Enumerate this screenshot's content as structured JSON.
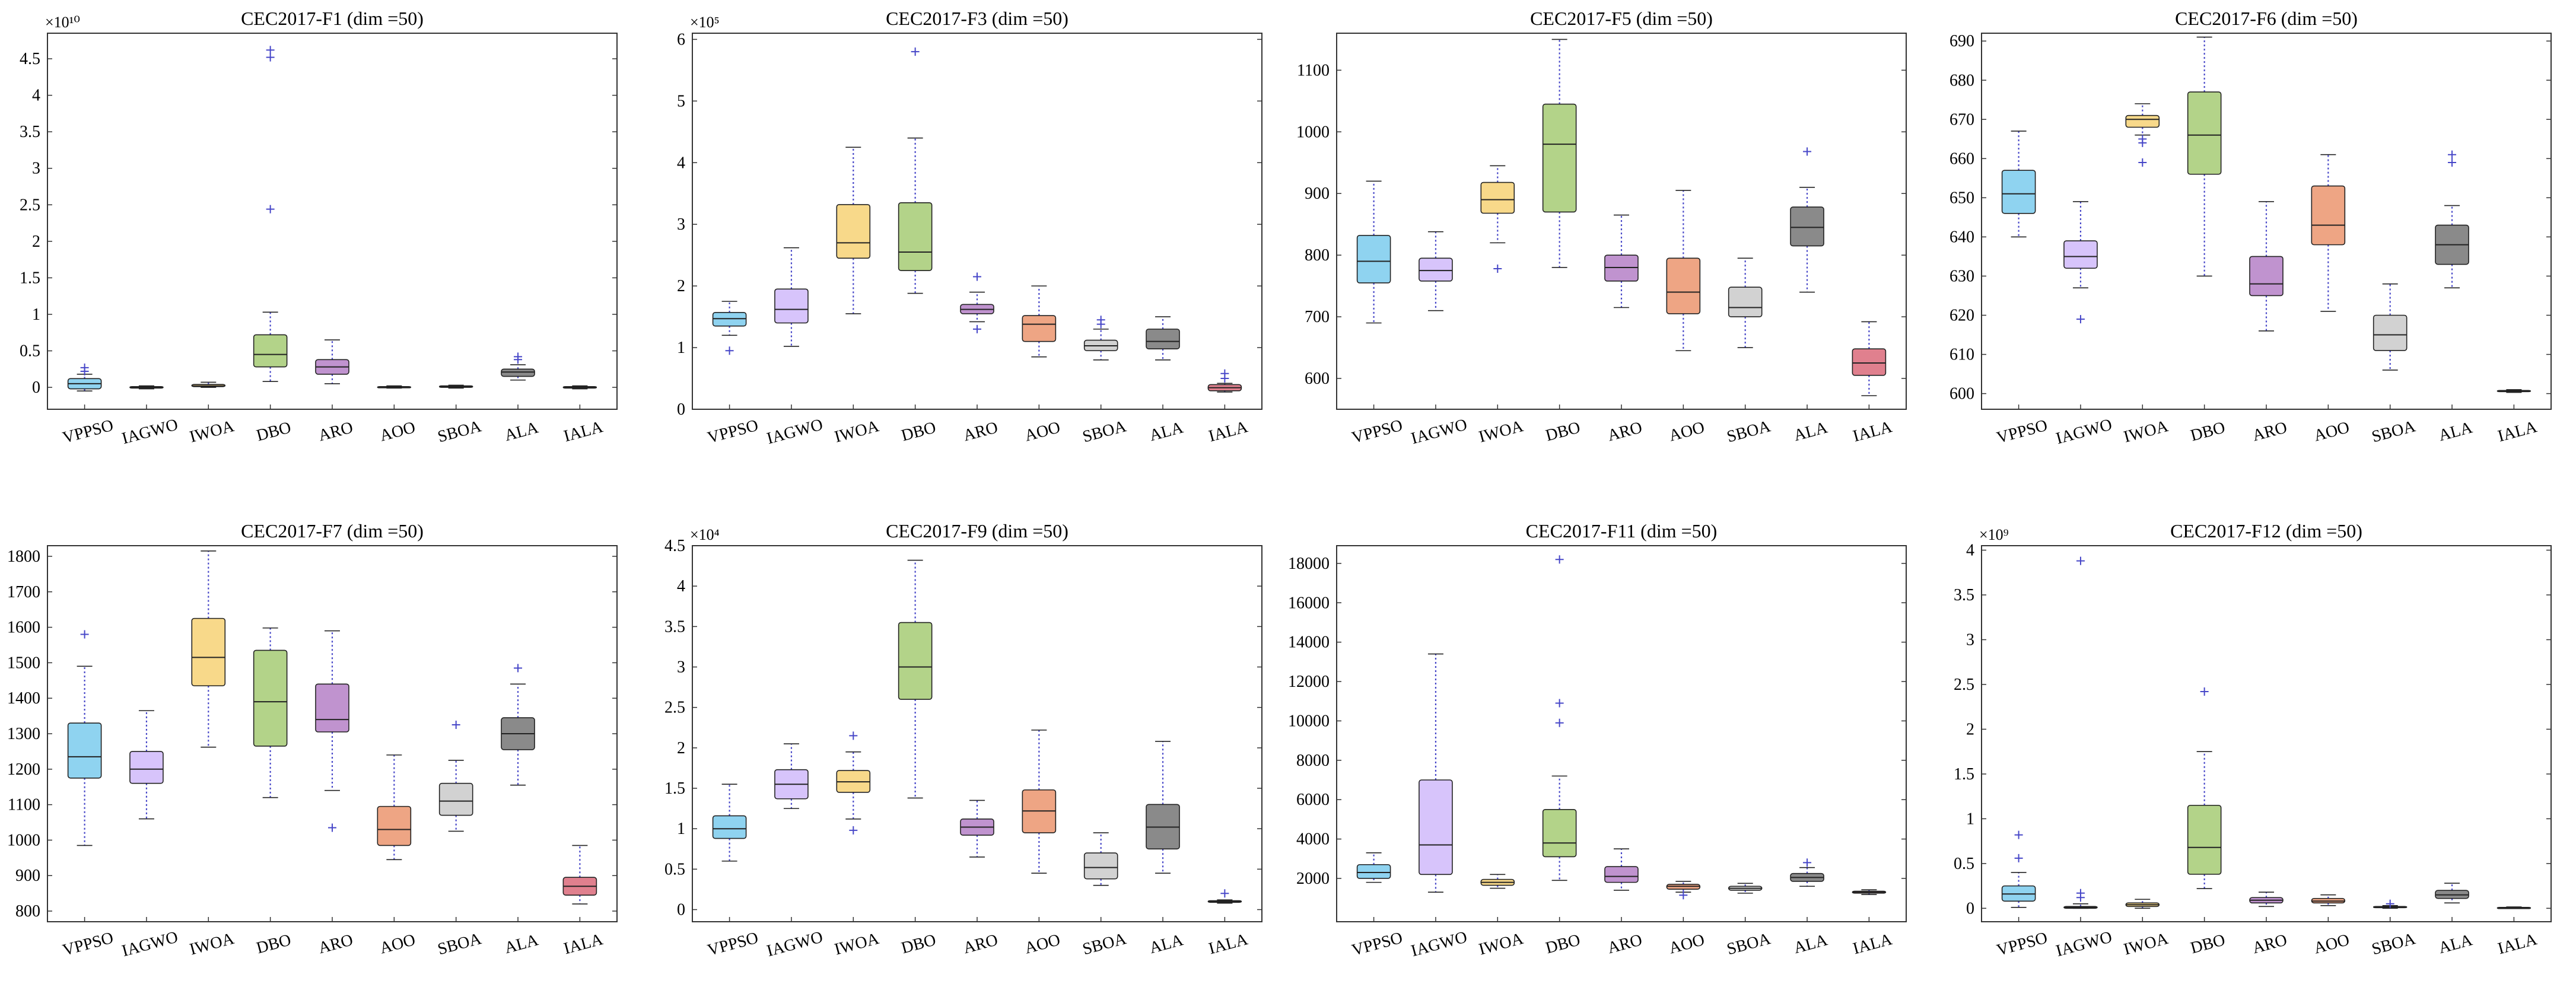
{
  "chart_data": [
    {
      "type": "box",
      "title": "CEC2017-F1 (dim =50)",
      "exponent_label": "×10¹⁰",
      "yticks": [
        0,
        0.5,
        1,
        1.5,
        2,
        2.5,
        3,
        3.5,
        4,
        4.5
      ],
      "yticklabels": [
        "0",
        "0.5",
        "1",
        "1.5",
        "2",
        "2.5",
        "3",
        "3.5",
        "4",
        "4.5"
      ],
      "ylim": [
        -0.3,
        4.85
      ],
      "categories": [
        "VPPSO",
        "IAGWO",
        "IWOA",
        "DBO",
        "ARO",
        "AOO",
        "SBOA",
        "ALA",
        "IALA"
      ],
      "boxes": [
        {
          "min": -0.05,
          "q1": -0.02,
          "median": 0.05,
          "q3": 0.12,
          "max": 0.18,
          "outliers": [
            0.22,
            0.27
          ]
        },
        {
          "min": -0.02,
          "q1": -0.01,
          "median": 0.0,
          "q3": 0.01,
          "max": 0.02,
          "outliers": []
        },
        {
          "min": 0.0,
          "q1": 0.01,
          "median": 0.02,
          "q3": 0.04,
          "max": 0.07,
          "outliers": []
        },
        {
          "min": 0.08,
          "q1": 0.28,
          "median": 0.45,
          "q3": 0.72,
          "max": 1.03,
          "outliers": [
            2.44,
            4.52,
            4.62
          ]
        },
        {
          "min": 0.05,
          "q1": 0.18,
          "median": 0.28,
          "q3": 0.38,
          "max": 0.65,
          "outliers": []
        },
        {
          "min": -0.01,
          "q1": 0.0,
          "median": 0.0,
          "q3": 0.01,
          "max": 0.02,
          "outliers": []
        },
        {
          "min": -0.01,
          "q1": 0.0,
          "median": 0.01,
          "q3": 0.02,
          "max": 0.03,
          "outliers": []
        },
        {
          "min": 0.1,
          "q1": 0.15,
          "median": 0.21,
          "q3": 0.25,
          "max": 0.31,
          "outliers": [
            0.38,
            0.42
          ]
        },
        {
          "min": -0.02,
          "q1": -0.01,
          "median": 0.0,
          "q3": 0.01,
          "max": 0.02,
          "outliers": []
        }
      ]
    },
    {
      "type": "box",
      "title": "CEC2017-F3 (dim =50)",
      "exponent_label": "×10⁵",
      "yticks": [
        0,
        1,
        2,
        3,
        4,
        5,
        6
      ],
      "yticklabels": [
        "0",
        "1",
        "2",
        "3",
        "4",
        "5",
        "6"
      ],
      "ylim": [
        0,
        6.1
      ],
      "categories": [
        "VPPSO",
        "IAGWO",
        "IWOA",
        "DBO",
        "ARO",
        "AOO",
        "SBOA",
        "ALA",
        "IALA"
      ],
      "boxes": [
        {
          "min": 1.2,
          "q1": 1.35,
          "median": 1.47,
          "q3": 1.57,
          "max": 1.75,
          "outliers": [
            0.95
          ]
        },
        {
          "min": 1.02,
          "q1": 1.4,
          "median": 1.62,
          "q3": 1.95,
          "max": 2.62,
          "outliers": []
        },
        {
          "min": 1.55,
          "q1": 2.45,
          "median": 2.7,
          "q3": 3.32,
          "max": 4.25,
          "outliers": []
        },
        {
          "min": 1.88,
          "q1": 2.25,
          "median": 2.55,
          "q3": 3.35,
          "max": 4.4,
          "outliers": [
            5.8
          ]
        },
        {
          "min": 1.42,
          "q1": 1.55,
          "median": 1.62,
          "q3": 1.7,
          "max": 1.9,
          "outliers": [
            2.15,
            1.3
          ]
        },
        {
          "min": 0.85,
          "q1": 1.1,
          "median": 1.38,
          "q3": 1.52,
          "max": 2.0,
          "outliers": []
        },
        {
          "min": 0.8,
          "q1": 0.95,
          "median": 1.03,
          "q3": 1.12,
          "max": 1.3,
          "outliers": [
            1.38,
            1.45
          ]
        },
        {
          "min": 0.8,
          "q1": 0.98,
          "median": 1.1,
          "q3": 1.3,
          "max": 1.5,
          "outliers": []
        },
        {
          "min": 0.28,
          "q1": 0.3,
          "median": 0.35,
          "q3": 0.4,
          "max": 0.42,
          "outliers": [
            0.5,
            0.58
          ]
        }
      ]
    },
    {
      "type": "box",
      "title": "CEC2017-F5 (dim =50)",
      "exponent_label": "",
      "yticks": [
        600,
        700,
        800,
        900,
        1000,
        1100
      ],
      "yticklabels": [
        "600",
        "700",
        "800",
        "900",
        "1000",
        "1100"
      ],
      "ylim": [
        550,
        1160
      ],
      "categories": [
        "VPPSO",
        "IAGWO",
        "IWOA",
        "DBO",
        "ARO",
        "AOO",
        "SBOA",
        "ALA",
        "IALA"
      ],
      "boxes": [
        {
          "min": 690,
          "q1": 755,
          "median": 790,
          "q3": 832,
          "max": 920,
          "outliers": []
        },
        {
          "min": 710,
          "q1": 758,
          "median": 775,
          "q3": 795,
          "max": 838,
          "outliers": []
        },
        {
          "min": 820,
          "q1": 868,
          "median": 890,
          "q3": 918,
          "max": 945,
          "outliers": [
            778
          ]
        },
        {
          "min": 780,
          "q1": 870,
          "median": 980,
          "q3": 1045,
          "max": 1150,
          "outliers": []
        },
        {
          "min": 715,
          "q1": 758,
          "median": 780,
          "q3": 800,
          "max": 865,
          "outliers": []
        },
        {
          "min": 645,
          "q1": 705,
          "median": 740,
          "q3": 795,
          "max": 905,
          "outliers": []
        },
        {
          "min": 650,
          "q1": 700,
          "median": 715,
          "q3": 748,
          "max": 795,
          "outliers": []
        },
        {
          "min": 740,
          "q1": 815,
          "median": 845,
          "q3": 878,
          "max": 910,
          "outliers": [
            968
          ]
        },
        {
          "min": 572,
          "q1": 605,
          "median": 625,
          "q3": 648,
          "max": 692,
          "outliers": []
        }
      ]
    },
    {
      "type": "box",
      "title": "CEC2017-F6 (dim =50)",
      "exponent_label": "",
      "yticks": [
        600,
        610,
        620,
        630,
        640,
        650,
        660,
        670,
        680,
        690
      ],
      "yticklabels": [
        "600",
        "610",
        "620",
        "630",
        "640",
        "650",
        "660",
        "670",
        "680",
        "690"
      ],
      "ylim": [
        596,
        692
      ],
      "categories": [
        "VPPSO",
        "IAGWO",
        "IWOA",
        "DBO",
        "ARO",
        "AOO",
        "SBOA",
        "ALA",
        "IALA"
      ],
      "boxes": [
        {
          "min": 640,
          "q1": 646,
          "median": 651,
          "q3": 657,
          "max": 667,
          "outliers": []
        },
        {
          "min": 627,
          "q1": 632,
          "median": 635,
          "q3": 639,
          "max": 649,
          "outliers": [
            619
          ]
        },
        {
          "min": 666,
          "q1": 668,
          "median": 670,
          "q3": 671,
          "max": 674,
          "outliers": [
            659,
            664,
            665
          ]
        },
        {
          "min": 630,
          "q1": 656,
          "median": 666,
          "q3": 677,
          "max": 691,
          "outliers": []
        },
        {
          "min": 616,
          "q1": 625,
          "median": 628,
          "q3": 635,
          "max": 649,
          "outliers": []
        },
        {
          "min": 621,
          "q1": 638,
          "median": 643,
          "q3": 653,
          "max": 661,
          "outliers": []
        },
        {
          "min": 606,
          "q1": 611,
          "median": 615,
          "q3": 620,
          "max": 628,
          "outliers": []
        },
        {
          "min": 627,
          "q1": 633,
          "median": 638,
          "q3": 643,
          "max": 648,
          "outliers": [
            659,
            661
          ]
        },
        {
          "min": 600.3,
          "q1": 600.5,
          "median": 600.6,
          "q3": 600.8,
          "max": 601,
          "outliers": []
        }
      ]
    },
    {
      "type": "box",
      "title": "CEC2017-F7 (dim =50)",
      "exponent_label": "",
      "yticks": [
        800,
        900,
        1000,
        1100,
        1200,
        1300,
        1400,
        1500,
        1600,
        1700,
        1800
      ],
      "yticklabels": [
        "800",
        "900",
        "1000",
        "1100",
        "1200",
        "1300",
        "1400",
        "1500",
        "1600",
        "1700",
        "1800"
      ],
      "ylim": [
        770,
        1830
      ],
      "categories": [
        "VPPSO",
        "IAGWO",
        "IWOA",
        "DBO",
        "ARO",
        "AOO",
        "SBOA",
        "ALA",
        "IALA"
      ],
      "boxes": [
        {
          "min": 985,
          "q1": 1175,
          "median": 1235,
          "q3": 1330,
          "max": 1490,
          "outliers": [
            1580
          ]
        },
        {
          "min": 1060,
          "q1": 1160,
          "median": 1200,
          "q3": 1250,
          "max": 1365,
          "outliers": []
        },
        {
          "min": 1262,
          "q1": 1435,
          "median": 1515,
          "q3": 1625,
          "max": 1815,
          "outliers": []
        },
        {
          "min": 1120,
          "q1": 1265,
          "median": 1390,
          "q3": 1535,
          "max": 1598,
          "outliers": []
        },
        {
          "min": 1140,
          "q1": 1305,
          "median": 1340,
          "q3": 1440,
          "max": 1590,
          "outliers": [
            1035
          ]
        },
        {
          "min": 945,
          "q1": 985,
          "median": 1030,
          "q3": 1095,
          "max": 1240,
          "outliers": []
        },
        {
          "min": 1025,
          "q1": 1070,
          "median": 1110,
          "q3": 1160,
          "max": 1225,
          "outliers": [
            1325
          ]
        },
        {
          "min": 1155,
          "q1": 1255,
          "median": 1300,
          "q3": 1345,
          "max": 1440,
          "outliers": [
            1485
          ]
        },
        {
          "min": 820,
          "q1": 845,
          "median": 870,
          "q3": 895,
          "max": 985,
          "outliers": []
        }
      ]
    },
    {
      "type": "box",
      "title": "CEC2017-F9 (dim =50)",
      "exponent_label": "×10⁴",
      "yticks": [
        0,
        0.5,
        1,
        1.5,
        2,
        2.5,
        3,
        3.5,
        4,
        4.5
      ],
      "yticklabels": [
        "0",
        "0.5",
        "1",
        "1.5",
        "2",
        "2.5",
        "3",
        "3.5",
        "4",
        "4.5"
      ],
      "ylim": [
        -0.15,
        4.5
      ],
      "categories": [
        "VPPSO",
        "IAGWO",
        "IWOA",
        "DBO",
        "ARO",
        "AOO",
        "SBOA",
        "ALA",
        "IALA"
      ],
      "boxes": [
        {
          "min": 0.6,
          "q1": 0.88,
          "median": 1.0,
          "q3": 1.16,
          "max": 1.55,
          "outliers": []
        },
        {
          "min": 1.25,
          "q1": 1.37,
          "median": 1.55,
          "q3": 1.73,
          "max": 2.05,
          "outliers": []
        },
        {
          "min": 1.12,
          "q1": 1.45,
          "median": 1.58,
          "q3": 1.72,
          "max": 1.95,
          "outliers": [
            0.98,
            2.15
          ]
        },
        {
          "min": 1.38,
          "q1": 2.6,
          "median": 3.0,
          "q3": 3.55,
          "max": 4.32,
          "outliers": []
        },
        {
          "min": 0.65,
          "q1": 0.92,
          "median": 1.02,
          "q3": 1.12,
          "max": 1.35,
          "outliers": []
        },
        {
          "min": 0.45,
          "q1": 0.95,
          "median": 1.22,
          "q3": 1.48,
          "max": 2.22,
          "outliers": []
        },
        {
          "min": 0.3,
          "q1": 0.38,
          "median": 0.52,
          "q3": 0.7,
          "max": 0.95,
          "outliers": []
        },
        {
          "min": 0.45,
          "q1": 0.75,
          "median": 1.02,
          "q3": 1.3,
          "max": 2.08,
          "outliers": []
        },
        {
          "min": 0.08,
          "q1": 0.09,
          "median": 0.1,
          "q3": 0.11,
          "max": 0.12,
          "outliers": [
            0.2
          ]
        }
      ]
    },
    {
      "type": "box",
      "title": "CEC2017-F11 (dim =50)",
      "exponent_label": "",
      "yticks": [
        2000,
        4000,
        6000,
        8000,
        10000,
        12000,
        14000,
        16000,
        18000
      ],
      "yticklabels": [
        "2000",
        "4000",
        "6000",
        "8000",
        "10000",
        "12000",
        "14000",
        "16000",
        "18000"
      ],
      "ylim": [
        -200,
        18900
      ],
      "categories": [
        "VPPSO",
        "IAGWO",
        "IWOA",
        "DBO",
        "ARO",
        "AOO",
        "SBOA",
        "ALA",
        "IALA"
      ],
      "boxes": [
        {
          "min": 1800,
          "q1": 2000,
          "median": 2300,
          "q3": 2700,
          "max": 3300,
          "outliers": []
        },
        {
          "min": 1300,
          "q1": 2200,
          "median": 3700,
          "q3": 7000,
          "max": 13400,
          "outliers": []
        },
        {
          "min": 1500,
          "q1": 1650,
          "median": 1800,
          "q3": 1950,
          "max": 2200,
          "outliers": []
        },
        {
          "min": 1900,
          "q1": 3100,
          "median": 3800,
          "q3": 5500,
          "max": 7200,
          "outliers": [
            9900,
            10900,
            18200
          ]
        },
        {
          "min": 1400,
          "q1": 1800,
          "median": 2100,
          "q3": 2600,
          "max": 3500,
          "outliers": []
        },
        {
          "min": 1300,
          "q1": 1450,
          "median": 1600,
          "q3": 1700,
          "max": 1850,
          "outliers": [
            1150
          ]
        },
        {
          "min": 1250,
          "q1": 1400,
          "median": 1500,
          "q3": 1600,
          "max": 1750,
          "outliers": []
        },
        {
          "min": 1600,
          "q1": 1850,
          "median": 2050,
          "q3": 2250,
          "max": 2550,
          "outliers": [
            2800
          ]
        },
        {
          "min": 1180,
          "q1": 1250,
          "median": 1300,
          "q3": 1350,
          "max": 1420,
          "outliers": []
        }
      ]
    },
    {
      "type": "box",
      "title": "CEC2017-F12 (dim =50)",
      "exponent_label": "×10⁹",
      "yticks": [
        0,
        0.5,
        1,
        1.5,
        2,
        2.5,
        3,
        3.5,
        4
      ],
      "yticklabels": [
        "0",
        "0.5",
        "1",
        "1.5",
        "2",
        "2.5",
        "3",
        "3.5",
        "4"
      ],
      "ylim": [
        -0.15,
        4.05
      ],
      "categories": [
        "VPPSO",
        "IAGWO",
        "IWOA",
        "DBO",
        "ARO",
        "AOO",
        "SBOA",
        "ALA",
        "IALA"
      ],
      "boxes": [
        {
          "min": 0.01,
          "q1": 0.08,
          "median": 0.16,
          "q3": 0.25,
          "max": 0.4,
          "outliers": [
            0.56,
            0.82
          ]
        },
        {
          "min": 0.0,
          "q1": 0.0,
          "median": 0.01,
          "q3": 0.02,
          "max": 0.05,
          "outliers": [
            0.12,
            0.17,
            3.88
          ]
        },
        {
          "min": 0.0,
          "q1": 0.02,
          "median": 0.04,
          "q3": 0.06,
          "max": 0.1,
          "outliers": []
        },
        {
          "min": 0.22,
          "q1": 0.38,
          "median": 0.68,
          "q3": 1.15,
          "max": 1.75,
          "outliers": [
            2.42
          ]
        },
        {
          "min": 0.02,
          "q1": 0.06,
          "median": 0.09,
          "q3": 0.12,
          "max": 0.18,
          "outliers": []
        },
        {
          "min": 0.03,
          "q1": 0.06,
          "median": 0.08,
          "q3": 0.11,
          "max": 0.15,
          "outliers": []
        },
        {
          "min": 0.0,
          "q1": 0.01,
          "median": 0.015,
          "q3": 0.02,
          "max": 0.03,
          "outliers": [
            0.05
          ]
        },
        {
          "min": 0.06,
          "q1": 0.11,
          "median": 0.15,
          "q3": 0.2,
          "max": 0.28,
          "outliers": []
        },
        {
          "min": 0.0,
          "q1": 0.0,
          "median": 0.005,
          "q3": 0.01,
          "max": 0.015,
          "outliers": []
        }
      ]
    }
  ],
  "colors": {
    "box_fills": [
      "#8fd3f0",
      "#d7c4fb",
      "#f8d98a",
      "#b3d389",
      "#c093cf",
      "#eea584",
      "#d2d2d2",
      "#8a8a8a",
      "#e0808e"
    ],
    "box_edge": "#222222",
    "whisker": "#4646c8",
    "outlier": "#4646c8",
    "axis": "#333333"
  }
}
